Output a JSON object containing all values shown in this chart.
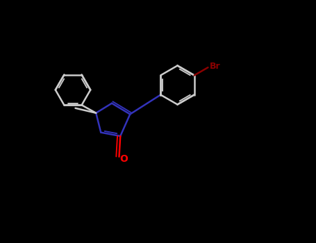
{
  "background_color": "#000000",
  "bond_color": "#cccccc",
  "nitrogen_color": "#3333bb",
  "oxygen_color": "#ff0000",
  "bromine_color": "#8b0000",
  "line_width": 1.8,
  "doff": 0.008,
  "figsize": [
    4.55,
    3.5
  ],
  "dpi": 100,
  "font_size_br": 9,
  "font_size_o": 10
}
